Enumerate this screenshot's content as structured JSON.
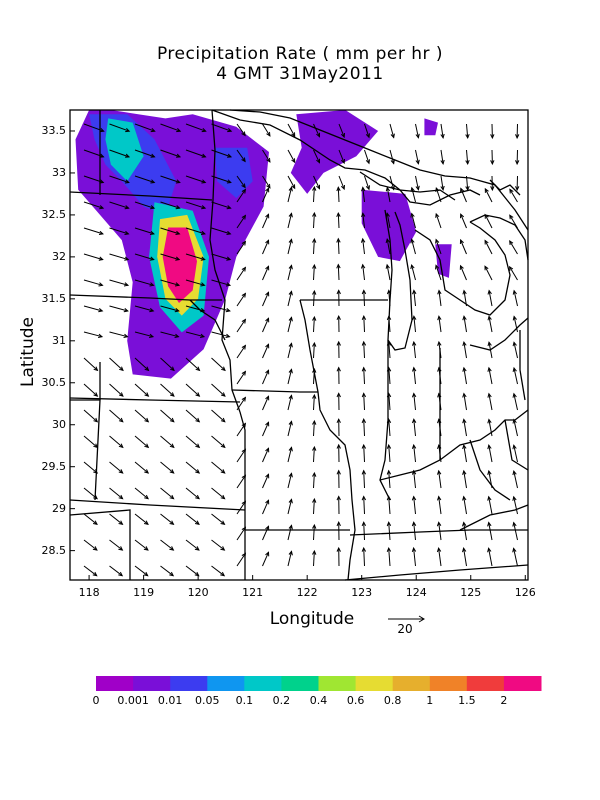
{
  "title_line1": "Precipitation Rate ( mm per hr )",
  "title_line2": "4 GMT 31May2011",
  "xlabel": "Longitude",
  "ylabel": "Latitude",
  "x_ticks": [
    "118",
    "119",
    "120",
    "121",
    "122",
    "123",
    "124",
    "125",
    "126"
  ],
  "y_ticks": [
    "33.5",
    "33",
    "32.5",
    "32",
    "31.5",
    "31",
    "30.5",
    "30",
    "29.5",
    "29",
    "28.5"
  ],
  "x_range": [
    117.65,
    126.05
  ],
  "y_range": [
    28.15,
    33.75
  ],
  "vector_reference": "20",
  "colorbar": {
    "labels": [
      "0",
      "0.001",
      "0.01",
      "0.05",
      "0.1",
      "0.2",
      "0.4",
      "0.6",
      "0.8",
      "1",
      "1.5",
      "2"
    ],
    "colors": [
      "#a000c8",
      "#7a0fd8",
      "#3c3cf0",
      "#0f96f0",
      "#00c8c8",
      "#00d28c",
      "#a0e632",
      "#e6dc32",
      "#e6af2d",
      "#f08228",
      "#f03c3c",
      "#f00a82"
    ]
  },
  "precip_regions": [
    {
      "level": 1,
      "lon_lat": [
        [
          118.0,
          33.75
        ],
        [
          118.4,
          33.75
        ],
        [
          118.9,
          33.7
        ],
        [
          119.4,
          33.65
        ],
        [
          119.9,
          33.7
        ],
        [
          120.7,
          33.55
        ],
        [
          121.3,
          33.25
        ],
        [
          121.2,
          32.6
        ],
        [
          120.7,
          32.0
        ],
        [
          120.5,
          31.5
        ],
        [
          120.1,
          30.9
        ],
        [
          119.5,
          30.55
        ],
        [
          118.8,
          30.6
        ],
        [
          118.7,
          31.0
        ],
        [
          118.8,
          31.7
        ],
        [
          118.6,
          32.2
        ],
        [
          118.2,
          32.5
        ],
        [
          117.8,
          32.8
        ],
        [
          117.75,
          33.4
        ]
      ]
    },
    {
      "level": 2,
      "lon_lat": [
        [
          118.0,
          33.7
        ],
        [
          118.7,
          33.7
        ],
        [
          119.2,
          33.4
        ],
        [
          119.6,
          32.9
        ],
        [
          119.4,
          32.5
        ],
        [
          119.0,
          32.6
        ],
        [
          118.6,
          32.9
        ],
        [
          118.3,
          33.1
        ],
        [
          118.1,
          33.4
        ]
      ]
    },
    {
      "level": 2,
      "lon_lat": [
        [
          120.3,
          33.3
        ],
        [
          120.9,
          33.3
        ],
        [
          121.0,
          32.9
        ],
        [
          120.7,
          32.7
        ],
        [
          120.35,
          32.9
        ]
      ]
    },
    {
      "level": 4,
      "lon_lat": [
        [
          118.35,
          33.65
        ],
        [
          118.8,
          33.6
        ],
        [
          119.0,
          33.2
        ],
        [
          118.7,
          32.9
        ],
        [
          118.4,
          33.1
        ],
        [
          118.3,
          33.4
        ]
      ]
    },
    {
      "level": 4,
      "lon_lat": [
        [
          119.2,
          32.65
        ],
        [
          119.9,
          32.55
        ],
        [
          120.2,
          32.0
        ],
        [
          120.1,
          31.3
        ],
        [
          119.7,
          31.1
        ],
        [
          119.3,
          31.4
        ],
        [
          119.1,
          32.0
        ]
      ]
    },
    {
      "level": 7,
      "lon_lat": [
        [
          119.3,
          32.45
        ],
        [
          119.8,
          32.5
        ],
        [
          120.1,
          32.0
        ],
        [
          120.0,
          31.5
        ],
        [
          119.7,
          31.3
        ],
        [
          119.4,
          31.5
        ],
        [
          119.25,
          32.0
        ]
      ]
    },
    {
      "level": 11,
      "lon_lat": [
        [
          119.45,
          32.35
        ],
        [
          119.8,
          32.35
        ],
        [
          119.98,
          31.95
        ],
        [
          119.9,
          31.6
        ],
        [
          119.65,
          31.45
        ],
        [
          119.45,
          31.65
        ],
        [
          119.35,
          32.0
        ]
      ]
    },
    {
      "level": 1,
      "lon_lat": [
        [
          121.8,
          33.7
        ],
        [
          122.7,
          33.75
        ],
        [
          123.3,
          33.5
        ],
        [
          122.9,
          33.2
        ],
        [
          122.3,
          33.0
        ],
        [
          122.0,
          32.75
        ],
        [
          121.7,
          33.0
        ],
        [
          121.9,
          33.3
        ]
      ]
    },
    {
      "level": 1,
      "lon_lat": [
        [
          123.0,
          32.8
        ],
        [
          123.8,
          32.75
        ],
        [
          124.0,
          32.3
        ],
        [
          123.7,
          31.95
        ],
        [
          123.3,
          32.0
        ],
        [
          123.0,
          32.4
        ]
      ]
    },
    {
      "level": 1,
      "lon_lat": [
        [
          124.15,
          33.65
        ],
        [
          124.4,
          33.6
        ],
        [
          124.35,
          33.45
        ],
        [
          124.15,
          33.45
        ]
      ]
    },
    {
      "level": 1,
      "lon_lat": [
        [
          124.35,
          32.15
        ],
        [
          124.65,
          32.15
        ],
        [
          124.6,
          31.75
        ],
        [
          124.4,
          31.8
        ]
      ]
    }
  ]
}
